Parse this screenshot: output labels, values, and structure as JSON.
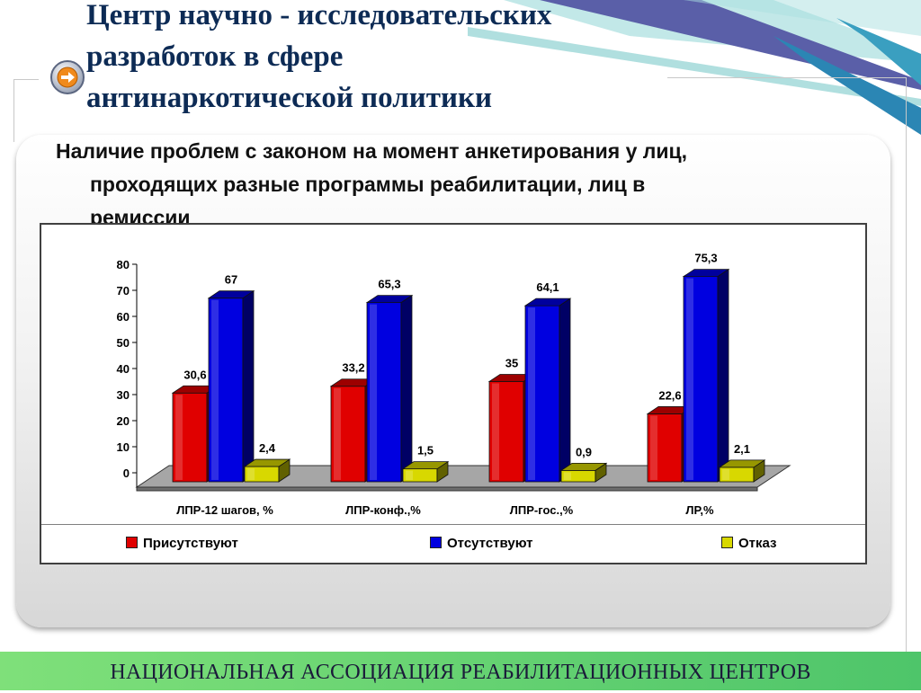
{
  "header": {
    "title_lines": [
      "Центр научно - исследовательских",
      "разработок в сфере",
      "антинаркотической политики"
    ]
  },
  "slide": {
    "subtitle_lines": [
      "Наличие проблем с законом на момент анкетирования у лиц,",
      "проходящих разные программы реабилитации, лиц в",
      "ремиссии"
    ]
  },
  "footer": {
    "text": "НАЦИОНАЛЬНАЯ АССОЦИАЦИЯ РЕАБИЛИТАЦИОННЫХ ЦЕНТРОВ"
  },
  "colors": {
    "title": "#0d2b55",
    "footer": "#5ccf6e",
    "series_present": "#e00000",
    "series_absent": "#0000e0",
    "series_refusal": "#d8d800"
  },
  "icons": {
    "nav": "arrow-right-icon"
  },
  "chart_data": {
    "type": "bar",
    "style": "3d-clustered",
    "categories": [
      "ЛПР-12 шагов, %",
      "ЛПР-конф.,%",
      "ЛПР-гос.,%",
      "ЛР,%"
    ],
    "series": [
      {
        "name": "Присутствуют",
        "values": [
          30.6,
          33.2,
          35,
          22.6
        ],
        "labels": [
          "30,6",
          "33,2",
          "35",
          "22,6"
        ],
        "color": "#e00000"
      },
      {
        "name": "Отсутствуют",
        "values": [
          67,
          65.3,
          64.1,
          75.3
        ],
        "labels": [
          "67",
          "65,3",
          "64,1",
          "75,3"
        ],
        "color": "#0000e0"
      },
      {
        "name": "Отказ",
        "values": [
          2.4,
          1.5,
          0.9,
          2.1
        ],
        "labels": [
          "2,4",
          "1,5",
          "0,9",
          "2,1"
        ],
        "color": "#d8d800"
      }
    ],
    "ylim": [
      0,
      80
    ],
    "yticks": [
      0,
      10,
      20,
      30,
      40,
      50,
      60,
      70,
      80
    ],
    "grid": false,
    "legend": "bottom"
  }
}
